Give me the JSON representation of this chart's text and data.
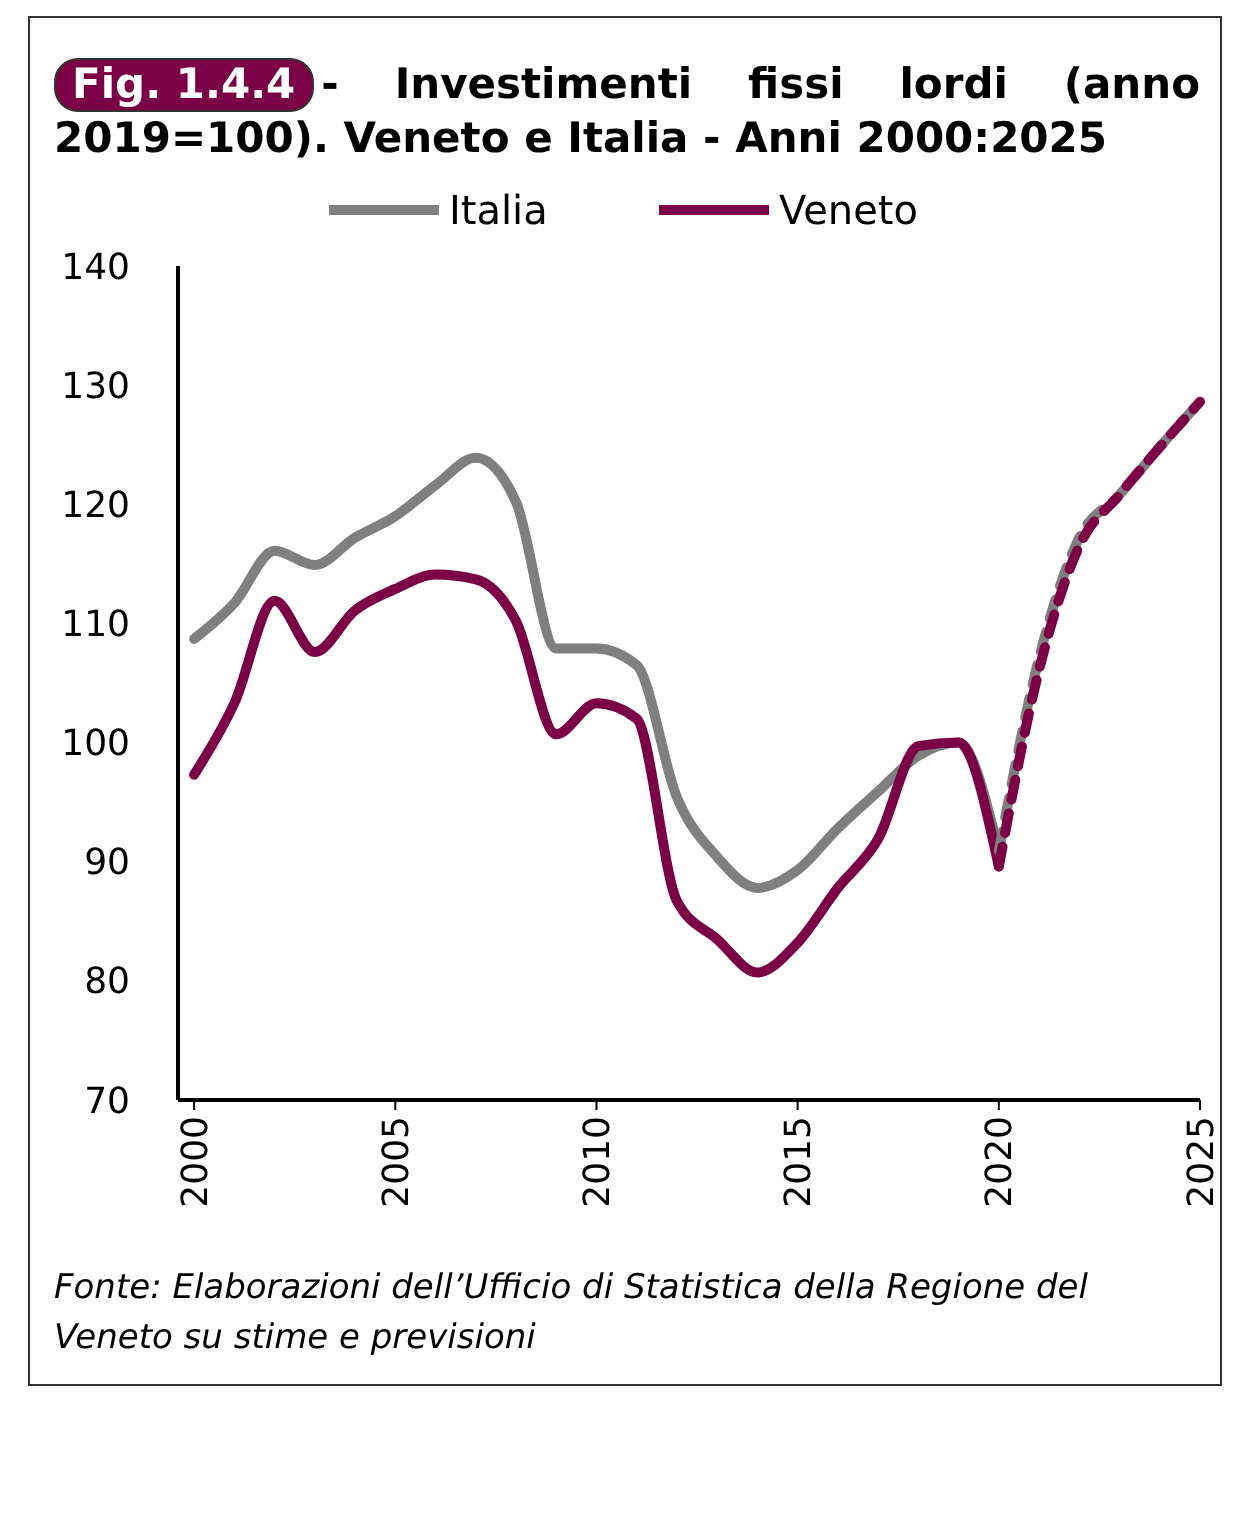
{
  "chart_data": {
    "type": "line",
    "title": "Fig. 1.4.4 - Investimenti fissi lordi (anno 2019=100). Veneto e Italia - Anni 2000:2025",
    "annotations": [
      "Fonte: Elaborazioni dell’Ufficio di Statistica della Regione del Veneto su stime e previsioni"
    ],
    "xlim": [
      1999.6,
      2025
    ],
    "xticks": [
      2000,
      2005,
      2010,
      2015,
      2020,
      2025
    ],
    "ylim": [
      70,
      140
    ],
    "yticks": [
      70,
      80,
      90,
      100,
      110,
      120,
      130,
      140
    ],
    "grid": false,
    "legend": "top",
    "marker": "none",
    "series": [
      {
        "name": "Italia",
        "color": "#7f7f7f",
        "line_style": "solid",
        "x": [
          2000,
          2001,
          2002,
          2003,
          2004,
          2005,
          2006,
          2007,
          2008,
          2009,
          2010,
          2011,
          2012,
          2013,
          2014,
          2015,
          2016,
          2017,
          2018,
          2019,
          2020
        ],
        "values": [
          108.7,
          111.7,
          116.1,
          114.9,
          117.2,
          119.0,
          121.6,
          123.9,
          120.2,
          107.9,
          107.9,
          106.5,
          95.4,
          90.4,
          87.8,
          89.3,
          92.8,
          95.9,
          98.9,
          100,
          90.9
        ]
      },
      {
        "name": "Veneto",
        "color": "#7b0046",
        "line_style": "solid",
        "x": [
          2000,
          2001,
          2002,
          2003,
          2004,
          2005,
          2006,
          2007,
          2008,
          2009,
          2010,
          2011,
          2012,
          2013,
          2014,
          2015,
          2016,
          2017,
          2018,
          2019,
          2020
        ],
        "values": [
          97.3,
          103.3,
          111.9,
          107.6,
          111.1,
          112.9,
          114.1,
          113.7,
          110.2,
          100.7,
          103.3,
          102.0,
          86.7,
          83.5,
          80.7,
          83.2,
          87.8,
          91.9,
          99.7,
          100,
          89.6
        ]
      },
      {
        "color": "#7f7f7f",
        "line_style": "dashed",
        "x": [
          2020,
          2021,
          2022,
          2023,
          2024,
          2025
        ],
        "values": [
          90.9,
          107.1,
          117.2,
          120.8,
          124.8,
          128.6
        ]
      },
      {
        "color": "#7b0046",
        "line_style": "dashed",
        "x": [
          2020,
          2021,
          2022,
          2023,
          2024,
          2025
        ],
        "values": [
          89.6,
          106.1,
          116.5,
          120.8,
          124.8,
          128.6
        ]
      }
    ]
  }
}
